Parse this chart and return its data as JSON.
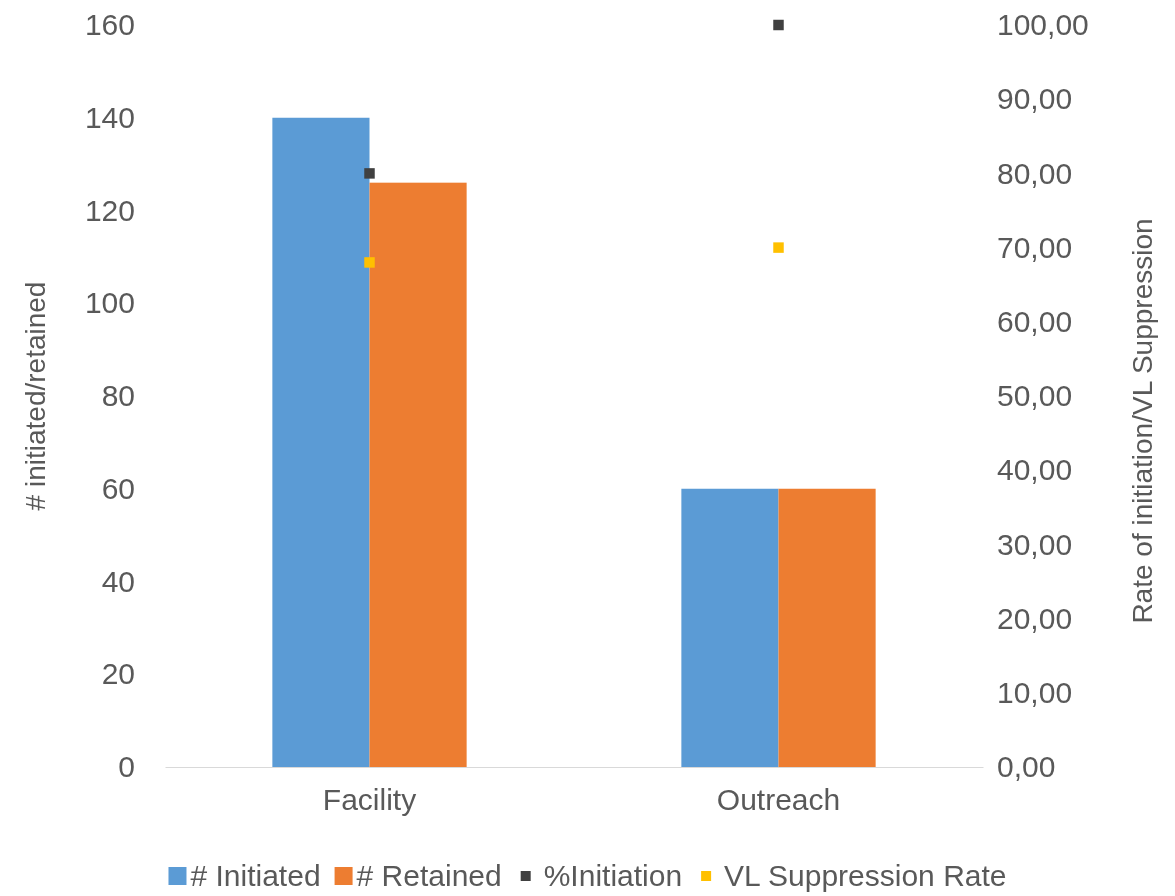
{
  "chart_data": {
    "type": "bar",
    "categories": [
      "Facility",
      "Outreach"
    ],
    "ylabel": "# initiated/retained",
    "y2label": "Rate of initiation/VL Suppression",
    "ylim": [
      0,
      160
    ],
    "yticks": [
      0,
      20,
      40,
      60,
      80,
      100,
      120,
      140,
      160
    ],
    "y2lim": [
      0,
      100
    ],
    "y2ticks": [
      {
        "value": 0,
        "label": "0,00"
      },
      {
        "value": 10,
        "label": "10,00"
      },
      {
        "value": 20,
        "label": "20,00"
      },
      {
        "value": 30,
        "label": "30,00"
      },
      {
        "value": 40,
        "label": "40,00"
      },
      {
        "value": 50,
        "label": "50,00"
      },
      {
        "value": 60,
        "label": "60,00"
      },
      {
        "value": 70,
        "label": "70,00"
      },
      {
        "value": 80,
        "label": "80,00"
      },
      {
        "value": 90,
        "label": "90,00"
      },
      {
        "value": 100,
        "label": "100,00"
      }
    ],
    "series": [
      {
        "name": "# Initiated",
        "color": "#5b9bd5",
        "values": [
          140,
          60
        ]
      },
      {
        "name": "# Retained",
        "color": "#ed7d31",
        "values": [
          126,
          60
        ]
      },
      {
        "name": "%Initiation",
        "color": "#404040",
        "type": "scatter",
        "axis": "y2",
        "x": [
          "Facility",
          "Outreach"
        ],
        "values": [
          80,
          100
        ]
      },
      {
        "name": "VL Suppression Rate",
        "color": "#ffc000",
        "type": "scatter",
        "axis": "y2",
        "x": [
          "Facility",
          "Outreach"
        ],
        "values": [
          68,
          70
        ]
      }
    ],
    "legend": "bottom",
    "grid": false,
    "marker": "square"
  }
}
